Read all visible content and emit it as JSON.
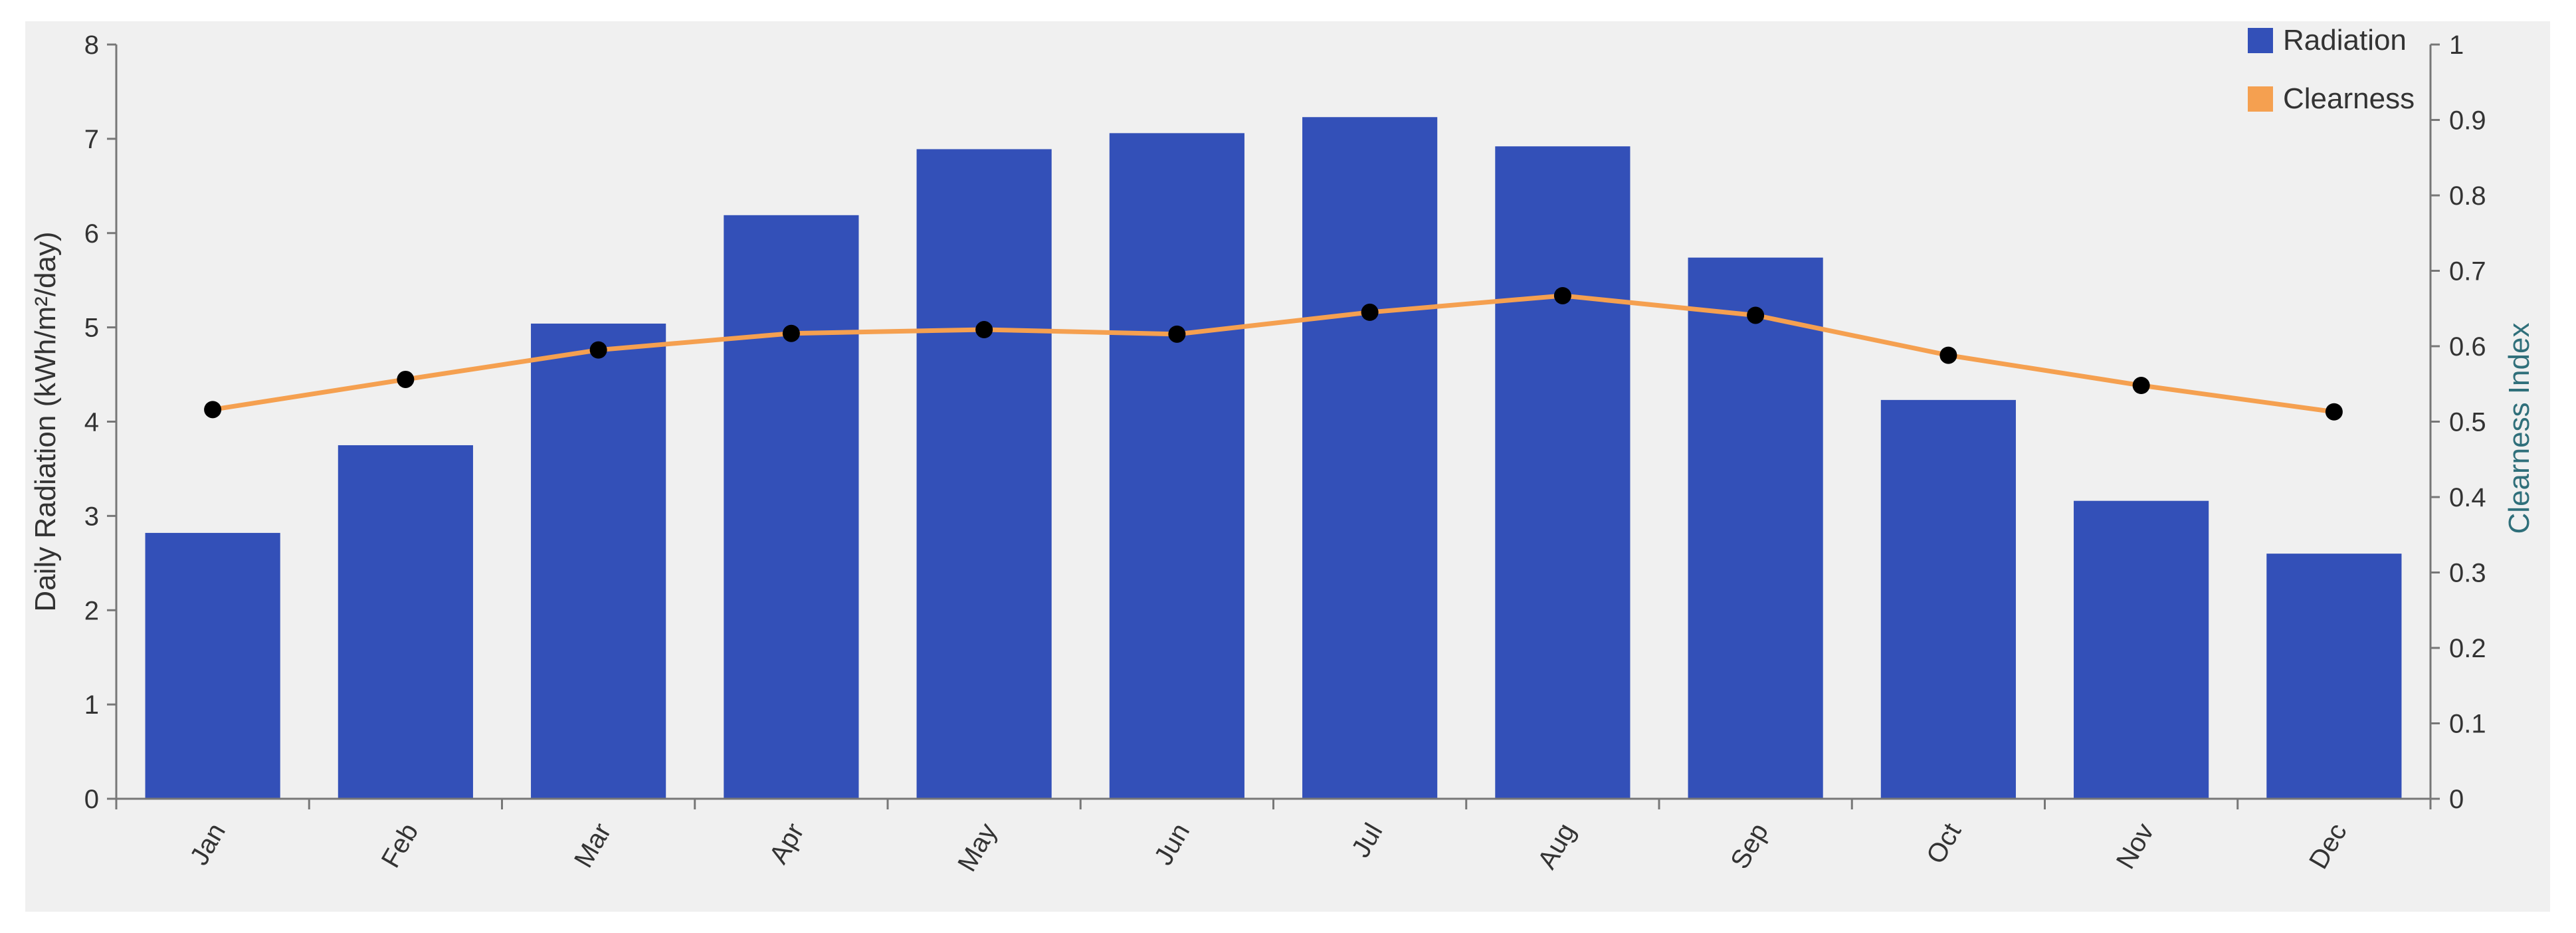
{
  "chart_data": {
    "type": "bar",
    "categories": [
      "Jan",
      "Feb",
      "Mar",
      "Apr",
      "May",
      "Jun",
      "Jul",
      "Aug",
      "Sep",
      "Oct",
      "Nov",
      "Dec"
    ],
    "series": [
      {
        "name": "Radiation",
        "type": "bar",
        "axis": "left",
        "color": "#3350b8",
        "values": [
          2.82,
          3.75,
          5.04,
          6.19,
          6.89,
          7.06,
          7.23,
          6.92,
          5.74,
          4.23,
          3.16,
          2.6
        ]
      },
      {
        "name": "Clearness",
        "type": "line",
        "axis": "right",
        "color": "#f5a050",
        "marker_color": "#000000",
        "values": [
          0.516,
          0.556,
          0.595,
          0.617,
          0.622,
          0.616,
          0.645,
          0.667,
          0.641,
          0.588,
          0.548,
          0.513
        ]
      }
    ],
    "ylabel": "Daily Radiation (kWh/m²/day)",
    "ylabel_right": "Clearness Index",
    "xlabel": "",
    "title": "",
    "ylim": [
      0,
      8
    ],
    "ylim_right": [
      0,
      1
    ],
    "yticks": [
      "0",
      "1",
      "2",
      "3",
      "4",
      "5",
      "6",
      "7",
      "8"
    ],
    "yticks_right": [
      "0",
      "0.1",
      "0.2",
      "0.3",
      "0.4",
      "0.5",
      "0.6",
      "0.7",
      "0.8",
      "0.9",
      "1"
    ],
    "grid": false,
    "legend_position": "top-right",
    "legend": [
      {
        "label": "Radiation",
        "color": "#3350b8"
      },
      {
        "label": "Clearness",
        "color": "#f5a050"
      }
    ]
  }
}
